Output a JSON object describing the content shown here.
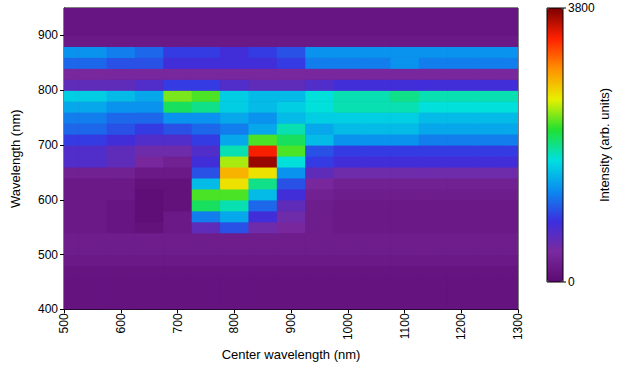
{
  "chart_data": {
    "type": "heatmap",
    "x_label": "Center wavelength (nm)",
    "y_label": "Wavelength (nm)",
    "x": [
      500,
      550,
      600,
      650,
      700,
      750,
      800,
      850,
      900,
      950,
      1000,
      1050,
      1100,
      1150,
      1200,
      1250,
      1300
    ],
    "y": [
      410,
      430,
      450,
      470,
      490,
      510,
      530,
      550,
      570,
      590,
      610,
      630,
      650,
      670,
      690,
      710,
      730,
      750,
      770,
      790,
      810,
      830,
      850,
      870,
      890,
      910,
      930,
      950
    ],
    "z": [
      [
        120,
        120,
        120,
        120,
        120,
        120,
        120,
        120,
        120,
        120,
        120,
        120,
        120,
        120,
        120,
        120,
        120
      ],
      [
        120,
        120,
        120,
        120,
        120,
        120,
        120,
        120,
        120,
        120,
        120,
        120,
        120,
        120,
        120,
        120,
        120
      ],
      [
        120,
        120,
        120,
        120,
        120,
        120,
        120,
        120,
        120,
        120,
        120,
        120,
        120,
        120,
        120,
        120,
        120
      ],
      [
        130,
        130,
        130,
        130,
        130,
        130,
        130,
        130,
        130,
        130,
        130,
        130,
        130,
        130,
        130,
        130,
        130
      ],
      [
        200,
        200,
        200,
        200,
        200,
        200,
        200,
        200,
        200,
        200,
        200,
        200,
        200,
        200,
        200,
        200,
        200
      ],
      [
        250,
        250,
        250,
        250,
        250,
        250,
        250,
        250,
        250,
        250,
        250,
        250,
        250,
        250,
        250,
        250,
        250
      ],
      [
        250,
        250,
        250,
        250,
        250,
        250,
        250,
        250,
        250,
        250,
        250,
        250,
        250,
        250,
        250,
        250,
        250
      ],
      [
        200,
        200,
        150,
        100,
        200,
        600,
        1000,
        500,
        400,
        250,
        200,
        200,
        200,
        200,
        200,
        200,
        200
      ],
      [
        200,
        200,
        150,
        50,
        200,
        1200,
        1400,
        800,
        500,
        250,
        200,
        200,
        200,
        200,
        200,
        200,
        200
      ],
      [
        200,
        200,
        150,
        50,
        100,
        2000,
        1800,
        1100,
        600,
        250,
        200,
        200,
        200,
        200,
        200,
        200,
        200
      ],
      [
        200,
        200,
        200,
        50,
        100,
        2200,
        2200,
        1500,
        800,
        300,
        250,
        250,
        250,
        250,
        250,
        250,
        250
      ],
      [
        200,
        200,
        200,
        100,
        100,
        1500,
        2600,
        1900,
        1000,
        400,
        300,
        300,
        300,
        300,
        300,
        300,
        300
      ],
      [
        300,
        300,
        300,
        200,
        200,
        1000,
        2800,
        2600,
        1300,
        600,
        500,
        500,
        500,
        500,
        500,
        500,
        500
      ],
      [
        700,
        700,
        600,
        400,
        300,
        800,
        2400,
        3700,
        1700,
        900,
        800,
        800,
        800,
        800,
        800,
        800,
        800
      ],
      [
        700,
        700,
        600,
        500,
        500,
        700,
        1800,
        3400,
        2200,
        1000,
        900,
        900,
        900,
        900,
        900,
        900,
        900
      ],
      [
        900,
        900,
        800,
        700,
        700,
        900,
        1400,
        2200,
        2000,
        1500,
        1300,
        1300,
        1300,
        1200,
        1200,
        1200,
        1200
      ],
      [
        1100,
        1100,
        1000,
        900,
        1000,
        1100,
        1200,
        1400,
        1800,
        1400,
        1500,
        1500,
        1500,
        1400,
        1400,
        1400,
        1400
      ],
      [
        1200,
        1200,
        1100,
        1100,
        1300,
        1300,
        1400,
        1300,
        1500,
        1600,
        1600,
        1600,
        1600,
        1500,
        1500,
        1500,
        1500
      ],
      [
        1400,
        1400,
        1300,
        1300,
        2000,
        1900,
        1600,
        1500,
        1600,
        1700,
        1800,
        1800,
        1800,
        1700,
        1700,
        1700,
        1700
      ],
      [
        1600,
        1600,
        1500,
        1400,
        2300,
        2200,
        1600,
        1500,
        1500,
        1700,
        1800,
        1800,
        1900,
        1800,
        1800,
        1800,
        1800
      ],
      [
        600,
        600,
        600,
        700,
        900,
        900,
        700,
        600,
        600,
        700,
        800,
        800,
        800,
        800,
        800,
        800,
        800
      ],
      [
        400,
        400,
        400,
        400,
        400,
        400,
        400,
        400,
        400,
        400,
        400,
        400,
        400,
        400,
        400,
        400,
        400
      ],
      [
        1100,
        1100,
        1000,
        1000,
        800,
        800,
        800,
        800,
        900,
        1200,
        1200,
        1200,
        1300,
        1200,
        1200,
        1200,
        1200
      ],
      [
        1300,
        1300,
        1200,
        1100,
        900,
        900,
        800,
        900,
        1000,
        1300,
        1300,
        1300,
        1300,
        1300,
        1300,
        1300,
        1300
      ],
      [
        200,
        200,
        200,
        200,
        200,
        200,
        200,
        200,
        200,
        200,
        200,
        200,
        200,
        200,
        200,
        200,
        200
      ],
      [
        150,
        150,
        150,
        150,
        150,
        150,
        150,
        150,
        150,
        150,
        150,
        150,
        150,
        150,
        150,
        150,
        150
      ],
      [
        150,
        150,
        150,
        150,
        150,
        150,
        150,
        150,
        150,
        150,
        150,
        150,
        150,
        150,
        150,
        150,
        150
      ],
      [
        150,
        150,
        150,
        150,
        150,
        150,
        150,
        150,
        150,
        150,
        150,
        150,
        150,
        150,
        150,
        150,
        150
      ]
    ],
    "xlim": [
      500,
      1300
    ],
    "xticks": [
      500,
      600,
      700,
      800,
      900,
      1000,
      1100,
      1200,
      1300
    ],
    "ylim": [
      400,
      950
    ],
    "yticks": [
      400,
      500,
      600,
      700,
      800,
      900
    ],
    "colorbar_label": "Intensity (arb. units)",
    "colorbar_range": [
      0,
      3800
    ],
    "colorbar_ticks": [
      0,
      3800
    ]
  }
}
